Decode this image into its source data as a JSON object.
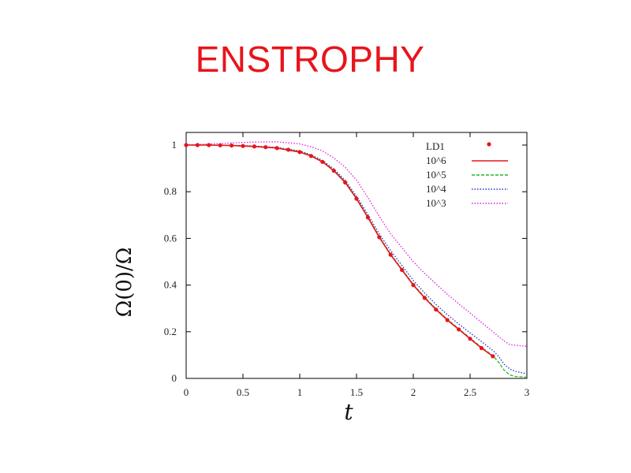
{
  "slide": {
    "title": "ENSTROPHY"
  },
  "chart_data": {
    "type": "line",
    "xlabel": "t",
    "ylabel": "Ω(0)/Ω",
    "xlim": [
      0,
      3
    ],
    "ylim": [
      0,
      1.0
    ],
    "x_ticks": [
      "0",
      "0.5",
      "1",
      "1.5",
      "2",
      "2.5",
      "3"
    ],
    "y_ticks": [
      "0",
      "0.2",
      "0.4",
      "0.6",
      "0.8",
      "1"
    ],
    "grid": false,
    "legend_position": "top-right",
    "series": [
      {
        "name": "LD1",
        "style": "points",
        "color": "#e8141b",
        "x": [
          0,
          0.1,
          0.2,
          0.3,
          0.4,
          0.5,
          0.6,
          0.7,
          0.8,
          0.9,
          1.0,
          1.1,
          1.2,
          1.3,
          1.4,
          1.5,
          1.6,
          1.7,
          1.8,
          1.9,
          2.0,
          2.1,
          2.2,
          2.3,
          2.4,
          2.5,
          2.6,
          2.7
        ],
        "y": [
          1.0,
          1.0,
          1.0,
          0.999,
          0.998,
          0.996,
          0.994,
          0.991,
          0.987,
          0.98,
          0.97,
          0.953,
          0.928,
          0.89,
          0.84,
          0.77,
          0.69,
          0.605,
          0.53,
          0.465,
          0.4,
          0.345,
          0.295,
          0.25,
          0.21,
          0.17,
          0.13,
          0.095
        ]
      },
      {
        "name": "10^6",
        "style": "solid",
        "color": "#e8141b",
        "x": [
          0,
          0.2,
          0.4,
          0.6,
          0.8,
          1.0,
          1.1,
          1.2,
          1.3,
          1.4,
          1.5,
          1.6,
          1.7,
          1.8,
          1.9,
          2.0,
          2.1,
          2.2,
          2.3,
          2.4,
          2.5,
          2.6,
          2.7
        ],
        "y": [
          1.0,
          1.0,
          0.998,
          0.994,
          0.987,
          0.97,
          0.953,
          0.928,
          0.89,
          0.84,
          0.77,
          0.69,
          0.605,
          0.53,
          0.465,
          0.4,
          0.345,
          0.295,
          0.25,
          0.21,
          0.17,
          0.13,
          0.095
        ]
      },
      {
        "name": "10^5",
        "style": "dashed",
        "color": "#22b822",
        "x": [
          0,
          0.2,
          0.4,
          0.6,
          0.8,
          1.0,
          1.1,
          1.2,
          1.3,
          1.4,
          1.5,
          1.6,
          1.7,
          1.8,
          1.9,
          2.0,
          2.1,
          2.2,
          2.3,
          2.4,
          2.5,
          2.6,
          2.7,
          2.75,
          2.8,
          2.85,
          2.9,
          3.0
        ],
        "y": [
          1.0,
          1.0,
          0.998,
          0.994,
          0.988,
          0.972,
          0.955,
          0.93,
          0.893,
          0.843,
          0.773,
          0.693,
          0.608,
          0.533,
          0.468,
          0.403,
          0.348,
          0.298,
          0.253,
          0.213,
          0.173,
          0.133,
          0.098,
          0.07,
          0.035,
          0.015,
          0.008,
          0.005
        ]
      },
      {
        "name": "10^4",
        "style": "dotted",
        "color": "#2233cc",
        "x": [
          0,
          0.2,
          0.4,
          0.6,
          0.8,
          1.0,
          1.1,
          1.2,
          1.3,
          1.4,
          1.5,
          1.6,
          1.7,
          1.8,
          1.9,
          2.0,
          2.1,
          2.2,
          2.3,
          2.4,
          2.5,
          2.6,
          2.7,
          2.75,
          2.8,
          2.85,
          2.9,
          3.0
        ],
        "y": [
          1.0,
          1.0,
          0.999,
          0.996,
          0.99,
          0.975,
          0.958,
          0.934,
          0.898,
          0.849,
          0.781,
          0.703,
          0.62,
          0.548,
          0.484,
          0.42,
          0.366,
          0.317,
          0.273,
          0.233,
          0.195,
          0.158,
          0.12,
          0.095,
          0.06,
          0.04,
          0.03,
          0.02
        ]
      },
      {
        "name": "10^3",
        "style": "dotted",
        "color": "#e020e0",
        "x": [
          0,
          0.2,
          0.4,
          0.6,
          0.8,
          1.0,
          1.1,
          1.2,
          1.3,
          1.4,
          1.5,
          1.6,
          1.7,
          1.8,
          1.9,
          2.0,
          2.1,
          2.2,
          2.3,
          2.4,
          2.5,
          2.6,
          2.7,
          2.75,
          2.8,
          2.85,
          2.9,
          3.0
        ],
        "y": [
          1.0,
          1.004,
          1.009,
          1.013,
          1.014,
          1.005,
          0.993,
          0.975,
          0.945,
          0.905,
          0.85,
          0.775,
          0.695,
          0.62,
          0.56,
          0.5,
          0.45,
          0.405,
          0.36,
          0.32,
          0.28,
          0.24,
          0.2,
          0.18,
          0.16,
          0.145,
          0.142,
          0.137
        ]
      }
    ]
  }
}
